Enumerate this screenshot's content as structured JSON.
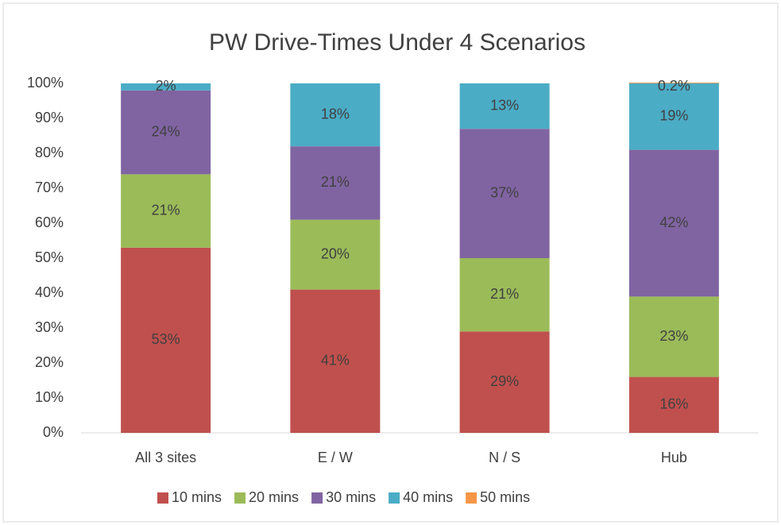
{
  "chart_data": {
    "type": "stacked_bar",
    "title": "PW Drive-Times Under 4 Scenarios",
    "categories": [
      "All 3 sites",
      "E / W",
      "N / S",
      "Hub"
    ],
    "series": [
      {
        "name": "10 mins",
        "color": "#c0504d",
        "values": [
          53,
          41,
          29,
          16
        ],
        "value_labels": [
          "53%",
          "41%",
          "29%",
          "16%"
        ]
      },
      {
        "name": "20 mins",
        "color": "#9bbb59",
        "values": [
          21,
          20,
          21,
          23
        ],
        "value_labels": [
          "21%",
          "20%",
          "21%",
          "23%"
        ]
      },
      {
        "name": "30 mins",
        "color": "#8064a2",
        "values": [
          24,
          21,
          37,
          42
        ],
        "value_labels": [
          "24%",
          "21%",
          "37%",
          "42%"
        ]
      },
      {
        "name": "40 mins",
        "color": "#4bacc6",
        "values": [
          2,
          18,
          13,
          19
        ],
        "value_labels": [
          "2%",
          "18%",
          "13%",
          "19%"
        ]
      },
      {
        "name": "50 mins",
        "color": "#f79646",
        "values": [
          null,
          null,
          null,
          0.2
        ],
        "value_labels": [
          null,
          null,
          null,
          "0.2%"
        ]
      }
    ],
    "ylim": [
      0,
      100
    ],
    "yticks": [
      {
        "value": 0,
        "label": "0%"
      },
      {
        "value": 10,
        "label": "10%"
      },
      {
        "value": 20,
        "label": "20%"
      },
      {
        "value": 30,
        "label": "30%"
      },
      {
        "value": 40,
        "label": "40%"
      },
      {
        "value": 50,
        "label": "50%"
      },
      {
        "value": 60,
        "label": "60%"
      },
      {
        "value": 70,
        "label": "70%"
      },
      {
        "value": 80,
        "label": "80%"
      },
      {
        "value": 90,
        "label": "90%"
      },
      {
        "value": 100,
        "label": "100%"
      }
    ],
    "legend": "bottom"
  }
}
